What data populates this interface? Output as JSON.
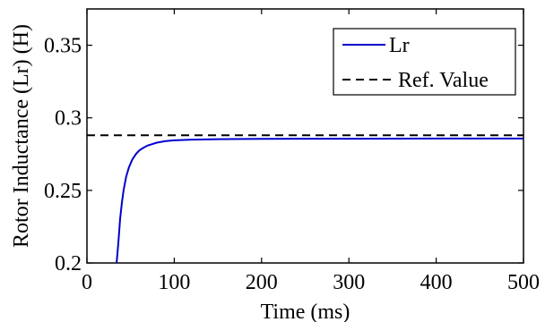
{
  "chart_data": {
    "type": "line",
    "title": "",
    "xlabel": "Time (ms)",
    "ylabel": "Rotor Inductance (Lr) (H)",
    "xlim": [
      0,
      500
    ],
    "ylim": [
      0.2,
      0.375
    ],
    "xticks": [
      0,
      100,
      200,
      300,
      400,
      500
    ],
    "yticks": [
      0.2,
      0.25,
      0.3,
      0.35
    ],
    "ytick_labels": [
      "0.2",
      "0.25",
      "0.3",
      "0.35"
    ],
    "xtick_labels": [
      "0",
      "100",
      "200",
      "300",
      "400",
      "500"
    ],
    "grid": false,
    "legend_position": "top-right",
    "series": [
      {
        "name": "Lr",
        "style": "solid",
        "color": "#0000cc",
        "x": [
          34,
          36,
          38,
          40,
          42,
          45,
          48,
          52,
          56,
          60,
          65,
          70,
          80,
          90,
          100,
          120,
          150,
          200,
          250,
          300,
          400,
          500
        ],
        "y": [
          0.2,
          0.2144,
          0.2304,
          0.2416,
          0.2502,
          0.2596,
          0.2658,
          0.2713,
          0.2749,
          0.2775,
          0.2795,
          0.281,
          0.2829,
          0.2839,
          0.2845,
          0.285,
          0.2853,
          0.2855,
          0.2856,
          0.2856,
          0.2857,
          0.2857
        ]
      },
      {
        "name": "Ref. Value",
        "style": "dashed",
        "color": "#000000",
        "x": [
          0,
          500
        ],
        "y": [
          0.288,
          0.288
        ]
      }
    ]
  }
}
